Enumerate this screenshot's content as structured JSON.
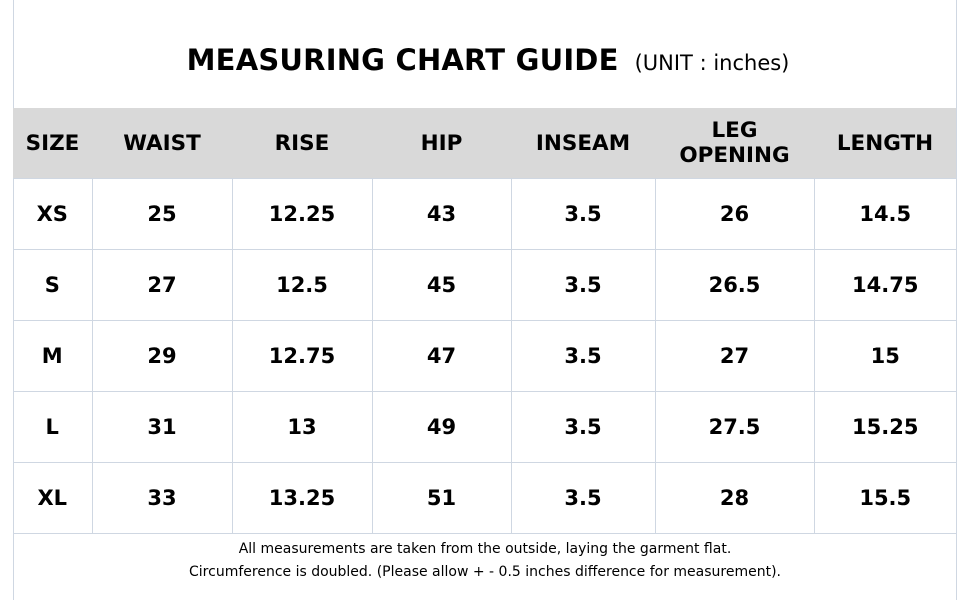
{
  "title": {
    "main": "MEASURING CHART GUIDE",
    "unit": "(UNIT : inches)"
  },
  "table": {
    "headers": [
      "SIZE",
      "WAIST",
      "RISE",
      "HIP",
      "INSEAM",
      "LEG OPENING",
      "LENGTH"
    ],
    "rows": [
      [
        "XS",
        "25",
        "12.25",
        "43",
        "3.5",
        "26",
        "14.5"
      ],
      [
        "S",
        "27",
        "12.5",
        "45",
        "3.5",
        "26.5",
        "14.75"
      ],
      [
        "M",
        "29",
        "12.75",
        "47",
        "3.5",
        "27",
        "15"
      ],
      [
        "L",
        "31",
        "13",
        "49",
        "3.5",
        "27.5",
        "15.25"
      ],
      [
        "XL",
        "33",
        "13.25",
        "51",
        "3.5",
        "28",
        "15.5"
      ]
    ]
  },
  "notes": {
    "line1": "All measurements are taken from the outside, laying the garment flat.",
    "line2": "Circumference is doubled. (Please allow + - 0.5 inches difference for measurement)."
  },
  "colors": {
    "header_background": "#d9d9d9",
    "grid_line": "#cfd7e2",
    "text": "#000000",
    "background": "#ffffff"
  }
}
